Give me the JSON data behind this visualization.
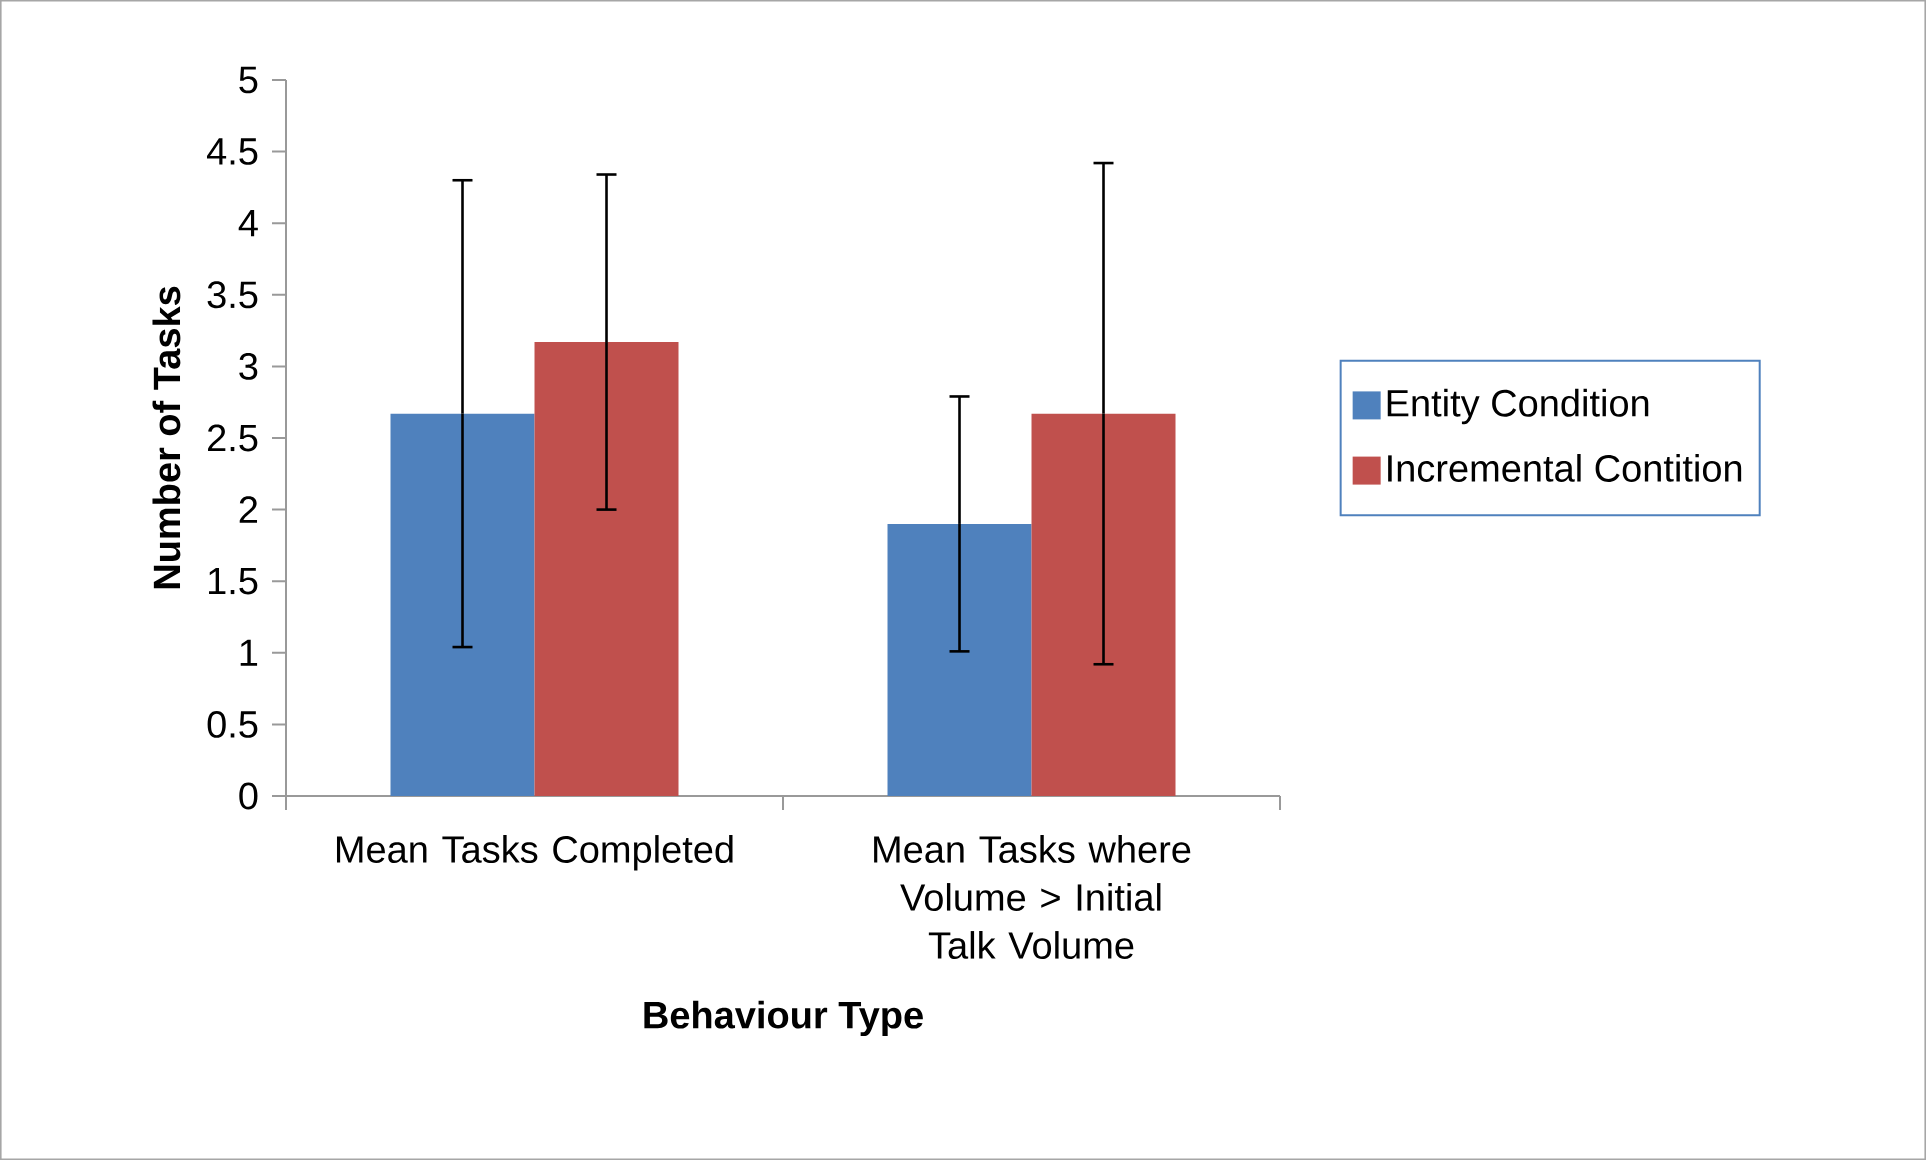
{
  "chart_data": {
    "type": "bar",
    "xlabel": "Behaviour Type",
    "ylabel": "Number of Tasks",
    "categories": [
      "Mean Tasks Completed",
      "Mean Tasks where Volume > Initial Talk Volume"
    ],
    "series": [
      {
        "name": "Entity Condition",
        "color": "#4f81bd",
        "values": [
          2.67,
          1.9
        ],
        "errors": [
          1.63,
          0.89
        ]
      },
      {
        "name": "Incremental Contition",
        "color": "#c0504d",
        "values": [
          3.17,
          2.67
        ],
        "errors": [
          1.17,
          1.75
        ]
      }
    ],
    "ylim": [
      0,
      5
    ],
    "yticks": [
      0,
      0.5,
      1,
      1.5,
      2,
      2.5,
      3,
      3.5,
      4,
      4.5,
      5
    ],
    "grid": false,
    "legend": "right"
  }
}
